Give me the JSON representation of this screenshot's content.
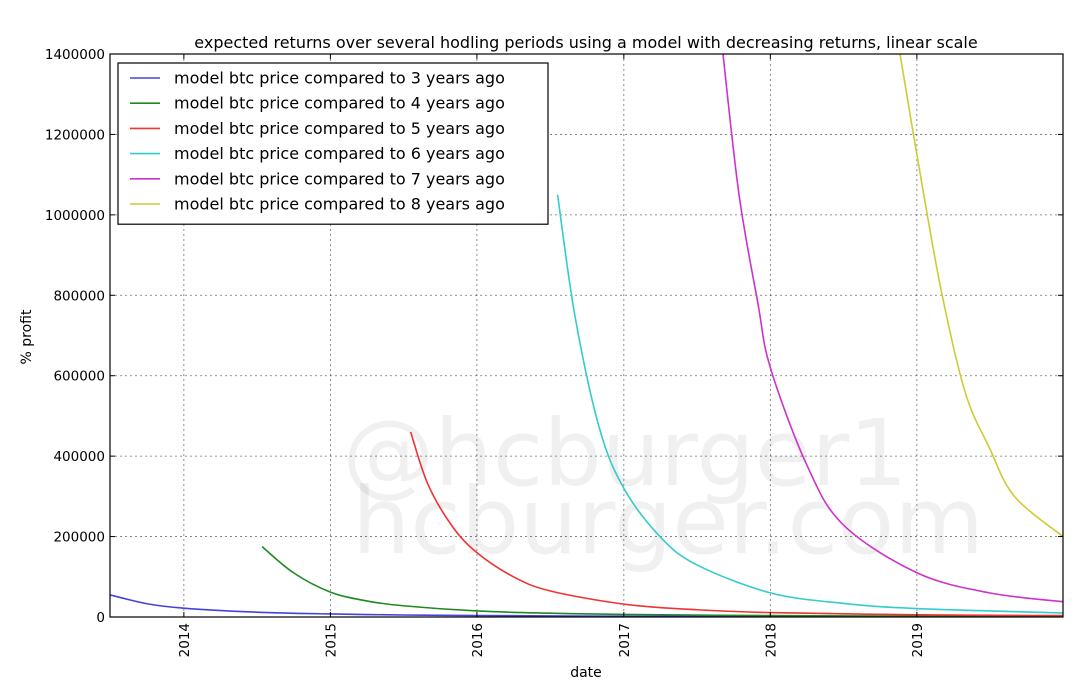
{
  "chart_data": {
    "type": "line",
    "title": "expected returns over several hodling periods using a model with decreasing returns, linear scale",
    "xlabel": "date",
    "ylabel": "% profit",
    "xlim": [
      "2013-07-01",
      "2019-12-31"
    ],
    "ylim": [
      0,
      1400000
    ],
    "x_tick_labels": [
      "2014",
      "2015",
      "2016",
      "2017",
      "2018",
      "2019"
    ],
    "x_tick_dates": [
      "2014-01-01",
      "2015-01-01",
      "2016-01-01",
      "2017-01-01",
      "2018-01-01",
      "2019-01-01"
    ],
    "y_ticks": [
      0,
      200000,
      400000,
      600000,
      800000,
      1000000,
      1200000,
      1400000
    ],
    "y_tick_labels": [
      "0",
      "200000",
      "400000",
      "600000",
      "800000",
      "1000000",
      "1200000",
      "1400000"
    ],
    "grid": true,
    "legend_position": "top-left",
    "watermark": [
      "@hcburger1",
      "hcburger.com"
    ],
    "series": [
      {
        "name": "model btc price compared to 3 years ago",
        "color": "#4444dd",
        "points": [
          [
            "2013-07-01",
            55000
          ],
          [
            "2013-10-01",
            33000
          ],
          [
            "2014-01-01",
            22000
          ],
          [
            "2014-07-01",
            12000
          ],
          [
            "2015-01-01",
            7500
          ],
          [
            "2015-07-01",
            5000
          ],
          [
            "2016-01-01",
            3500
          ],
          [
            "2017-01-01",
            2000
          ],
          [
            "2018-01-01",
            1200
          ],
          [
            "2019-01-01",
            800
          ],
          [
            "2019-12-31",
            600
          ]
        ]
      },
      {
        "name": "model btc price compared to 4 years ago",
        "color": "#228822",
        "points": [
          [
            "2014-07-15",
            175000
          ],
          [
            "2014-10-01",
            110000
          ],
          [
            "2015-01-01",
            62000
          ],
          [
            "2015-04-01",
            40000
          ],
          [
            "2015-07-01",
            28000
          ],
          [
            "2016-01-01",
            15000
          ],
          [
            "2016-07-01",
            9500
          ],
          [
            "2017-01-01",
            6500
          ],
          [
            "2018-01-01",
            3500
          ],
          [
            "2019-01-01",
            2200
          ],
          [
            "2019-12-31",
            1600
          ]
        ]
      },
      {
        "name": "model btc price compared to 5 years ago",
        "color": "#ee3333",
        "points": [
          [
            "2015-07-20",
            460000
          ],
          [
            "2015-09-01",
            330000
          ],
          [
            "2015-11-01",
            225000
          ],
          [
            "2016-01-01",
            160000
          ],
          [
            "2016-04-01",
            100000
          ],
          [
            "2016-07-01",
            65000
          ],
          [
            "2017-01-01",
            32000
          ],
          [
            "2017-07-01",
            18000
          ],
          [
            "2018-01-01",
            11000
          ],
          [
            "2019-01-01",
            5500
          ],
          [
            "2019-12-31",
            3500
          ]
        ]
      },
      {
        "name": "model btc price compared to 6 years ago",
        "color": "#33cccc",
        "points": [
          [
            "2016-07-20",
            1050000
          ],
          [
            "2016-09-01",
            750000
          ],
          [
            "2016-11-01",
            470000
          ],
          [
            "2017-01-01",
            320000
          ],
          [
            "2017-04-01",
            200000
          ],
          [
            "2017-07-01",
            130000
          ],
          [
            "2018-01-01",
            60000
          ],
          [
            "2018-07-01",
            34000
          ],
          [
            "2019-01-01",
            21000
          ],
          [
            "2019-12-31",
            10000
          ]
        ]
      },
      {
        "name": "model btc price compared to 7 years ago",
        "color": "#cc33cc",
        "points": [
          [
            "2017-09-05",
            1400000
          ],
          [
            "2017-10-15",
            1050000
          ],
          [
            "2017-12-01",
            780000
          ],
          [
            "2018-01-01",
            620000
          ],
          [
            "2018-04-01",
            380000
          ],
          [
            "2018-07-01",
            230000
          ],
          [
            "2019-01-01",
            110000
          ],
          [
            "2019-07-01",
            60000
          ],
          [
            "2019-12-31",
            38000
          ]
        ]
      },
      {
        "name": "model btc price compared to 8 years ago",
        "color": "#cccc33",
        "points": [
          [
            "2018-11-20",
            1400000
          ],
          [
            "2019-01-01",
            1150000
          ],
          [
            "2019-03-01",
            820000
          ],
          [
            "2019-05-01",
            560000
          ],
          [
            "2019-07-01",
            420000
          ],
          [
            "2019-09-01",
            300000
          ],
          [
            "2019-12-31",
            200000
          ]
        ]
      }
    ]
  }
}
